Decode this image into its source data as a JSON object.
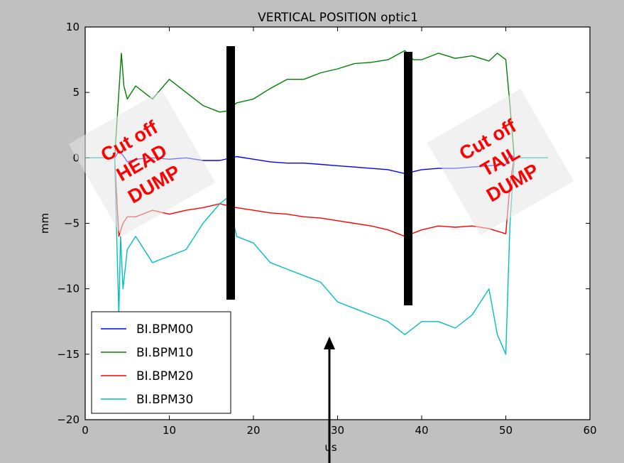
{
  "chart_data": {
    "type": "line",
    "title": "VERTICAL POSITION optic1",
    "xlabel": "us",
    "ylabel": "mm",
    "xlim": [
      0,
      60
    ],
    "ylim": [
      -20,
      10
    ],
    "x_ticks": [
      0,
      10,
      20,
      30,
      40,
      50,
      60
    ],
    "y_ticks": [
      10,
      5,
      0,
      -5,
      -10,
      -15,
      -20
    ],
    "x_tick_labels": [
      "0",
      "10",
      "20",
      "30",
      "40",
      "50",
      "60"
    ],
    "y_tick_labels": [
      "10",
      "5",
      "0",
      "−5",
      "−10",
      "−15",
      "−20"
    ],
    "grid": false,
    "legend_position": "lower-left",
    "series": [
      {
        "name": "BI.BPM00",
        "color": "#0000ff",
        "x": [
          0,
          3.5,
          4,
          4.5,
          5,
          6,
          8,
          10,
          12,
          14,
          16,
          18,
          20,
          22,
          24,
          26,
          28,
          30,
          32,
          34,
          36,
          38,
          40,
          42,
          44,
          46,
          48,
          50,
          50.5,
          51,
          55
        ],
        "y": [
          0,
          0,
          0.5,
          0.2,
          -0.3,
          -0.1,
          0,
          -0.1,
          0,
          -0.2,
          -0.2,
          0.1,
          -0.1,
          -0.3,
          -0.4,
          -0.4,
          -0.5,
          -0.6,
          -0.7,
          -0.8,
          -0.9,
          -1.2,
          -0.9,
          -0.8,
          -0.8,
          -0.7,
          -0.6,
          -0.5,
          0.3,
          0,
          0
        ]
      },
      {
        "name": "BI.BPM10",
        "color": "#008000",
        "x": [
          0,
          3.5,
          4,
          4.3,
          4.6,
          5,
          6,
          8,
          10,
          12,
          14,
          16,
          17,
          18,
          20,
          22,
          24,
          26,
          28,
          30,
          32,
          34,
          36,
          38,
          39,
          40,
          42,
          44,
          46,
          48,
          49,
          50,
          50.5,
          51,
          55
        ],
        "y": [
          0,
          0,
          5,
          8,
          5.5,
          4.5,
          5.5,
          4.5,
          6,
          5,
          4,
          3.5,
          3.6,
          4.2,
          4.5,
          5.3,
          6,
          6,
          6.5,
          6.8,
          7.2,
          7.3,
          7.5,
          8.2,
          7.5,
          7.5,
          8,
          7.6,
          7.8,
          7.4,
          8,
          7.5,
          4,
          0,
          0
        ]
      },
      {
        "name": "BI.BPM20",
        "color": "#ff0000",
        "x": [
          0,
          3.5,
          4,
          4.5,
          5,
          6,
          8,
          10,
          12,
          14,
          16,
          18,
          20,
          22,
          24,
          26,
          28,
          30,
          32,
          34,
          36,
          38,
          40,
          42,
          44,
          46,
          48,
          50,
          50.5,
          51,
          55
        ],
        "y": [
          0,
          0,
          -6,
          -5,
          -4.5,
          -4.5,
          -4,
          -4.3,
          -4,
          -3.8,
          -3.5,
          -3.8,
          -4,
          -4.2,
          -4.3,
          -4.5,
          -4.6,
          -4.8,
          -5,
          -5.2,
          -5.5,
          -6,
          -5.5,
          -5.2,
          -5.3,
          -5.2,
          -5.4,
          -5.8,
          -2,
          0,
          0
        ]
      },
      {
        "name": "BI.BPM30",
        "color": "#00bfbf",
        "x": [
          0,
          3.5,
          4,
          4.2,
          4.5,
          5,
          6,
          8,
          10,
          12,
          14,
          16,
          17,
          18,
          20,
          22,
          24,
          26,
          28,
          30,
          32,
          34,
          36,
          38,
          39,
          40,
          42,
          44,
          46,
          48,
          49,
          50,
          50.5,
          51,
          55
        ],
        "y": [
          0,
          0,
          -12,
          -6,
          -10,
          -7,
          -6,
          -8,
          -7.5,
          -7,
          -5,
          -3.5,
          -3,
          -6,
          -6.5,
          -8,
          -8.5,
          -9,
          -9.5,
          -11,
          -11.5,
          -12,
          -12.5,
          -13.5,
          -13,
          -12.5,
          -12.5,
          -13,
          -12,
          -10,
          -13.5,
          -15,
          -5,
          0,
          0
        ]
      }
    ]
  },
  "annotations": {
    "head_box": {
      "line1": "Cut off",
      "line2": "HEAD",
      "line3": "DUMP"
    },
    "tail_box": {
      "line1": "Cut off",
      "line2": "TAIL",
      "line3": "DUMP"
    },
    "text_color": "#ff0000",
    "box_color": "#e6e6e6",
    "cut_lines_at_x": [
      17.5,
      38.2
    ],
    "cut_line_color": "#000000",
    "arrow_at_x": 29.2,
    "arrow_color": "#000000"
  }
}
